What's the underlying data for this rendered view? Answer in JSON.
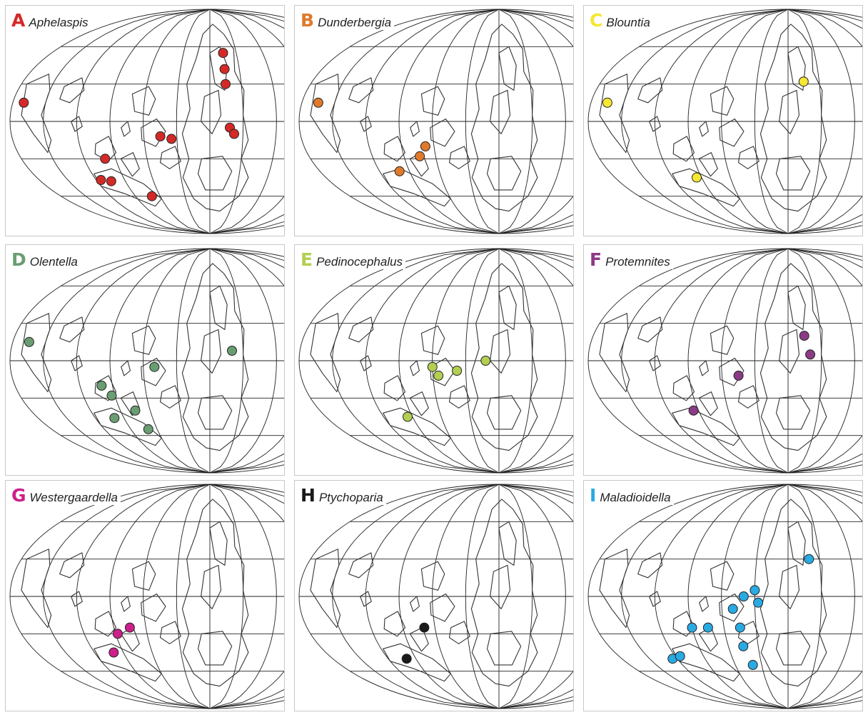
{
  "figure": {
    "panels": [
      {
        "letter": "A",
        "taxon": "Aphelaspis",
        "color": "#d42a27",
        "occurrences": [
          [
            -170,
            15
          ],
          [
            -100,
            -30
          ],
          [
            -115,
            -47
          ],
          [
            -105,
            -48
          ],
          [
            -70,
            -60
          ],
          [
            -45,
            -12
          ],
          [
            -35,
            -14
          ],
          [
            15,
            30
          ],
          [
            15,
            42
          ],
          [
            15,
            55
          ],
          [
            18,
            -5
          ],
          [
            22,
            -10
          ]
        ]
      },
      {
        "letter": "B",
        "taxon": "Dunderbergia",
        "color": "#e07a2a",
        "occurrences": [
          [
            -165,
            15
          ],
          [
            -100,
            -40
          ],
          [
            -75,
            -28
          ],
          [
            -68,
            -20
          ]
        ]
      },
      {
        "letter": "C",
        "taxon": "Blountia",
        "color": "#f5e733",
        "occurrences": [
          [
            -165,
            15
          ],
          [
            -95,
            -45
          ],
          [
            15,
            32
          ]
        ]
      },
      {
        "letter": "D",
        "taxon": "Olentella",
        "color": "#6a9e72",
        "occurrences": [
          [
            -165,
            15
          ],
          [
            -100,
            -20
          ],
          [
            -93,
            -28
          ],
          [
            -100,
            -46
          ],
          [
            -75,
            -40
          ],
          [
            -70,
            -55
          ],
          [
            -50,
            -5
          ],
          [
            20,
            8
          ]
        ]
      },
      {
        "letter": "E",
        "taxon": "Pedinocephalus",
        "color": "#b3cf52",
        "occurrences": [
          [
            -95,
            -45
          ],
          [
            -60,
            -5
          ],
          [
            -55,
            -12
          ],
          [
            -38,
            -8
          ],
          [
            -12,
            0
          ]
        ]
      },
      {
        "letter": "F",
        "taxon": "Protemnites",
        "color": "#8c3a86",
        "occurrences": [
          [
            -95,
            -40
          ],
          [
            -45,
            -12
          ],
          [
            15,
            20
          ],
          [
            20,
            5
          ]
        ]
      },
      {
        "letter": "G",
        "taxon": "Westergaardella",
        "color": "#cc1f8a",
        "occurrences": [
          [
            -100,
            -45
          ],
          [
            -88,
            -30
          ],
          [
            -75,
            -25
          ]
        ]
      },
      {
        "letter": "H",
        "taxon": "Ptychoparia",
        "color": "#1a1a1a",
        "occurrences": [
          [
            -100,
            -50
          ],
          [
            -70,
            -25
          ]
        ]
      },
      {
        "letter": "I",
        "taxon": "Maladioidella",
        "color": "#29aae2",
        "occurrences": [
          [
            -125,
            -50
          ],
          [
            -115,
            -48
          ],
          [
            -90,
            -25
          ],
          [
            -75,
            -25
          ],
          [
            -50,
            -10
          ],
          [
            -40,
            0
          ],
          [
            -30,
            5
          ],
          [
            -27,
            -5
          ],
          [
            -45,
            -40
          ],
          [
            -40,
            -55
          ],
          [
            -45,
            -25
          ],
          [
            20,
            30
          ]
        ]
      }
    ]
  }
}
